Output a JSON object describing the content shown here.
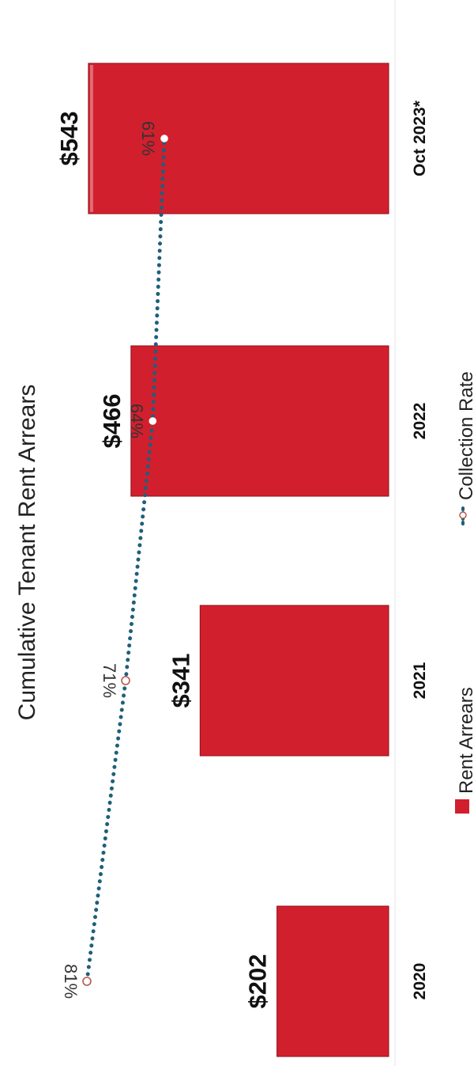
{
  "chart_data": {
    "type": "bar",
    "title": "Cumulative Tenant Rent Arrears",
    "categories": [
      "2020",
      "2021",
      "2022",
      "Oct 2023*"
    ],
    "series": [
      {
        "name": "Rent Arrears",
        "values": [
          202,
          341,
          466,
          543
        ],
        "value_labels": [
          "$202",
          "$341",
          "$466",
          "$543"
        ]
      },
      {
        "name": "Collection Rate",
        "values": [
          81,
          71,
          64,
          61
        ],
        "value_labels": [
          "81%",
          "71%",
          "64%",
          "61%"
        ]
      }
    ],
    "colors": {
      "bars": "#d21f2e",
      "line": "#1f5f7a",
      "marker": "#b55a4a"
    },
    "grid": false,
    "legend": "bottom",
    "orientation": "rotated 90° clockwise"
  }
}
